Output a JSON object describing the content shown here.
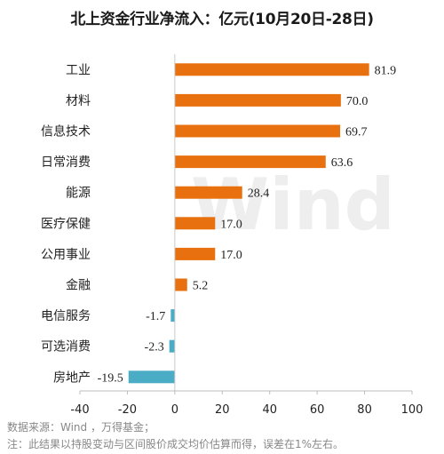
{
  "title": "北上资金行业净流入：亿元(10月20日-28日)",
  "watermark": "Wind",
  "source": "数据来源：Wind ，万得基金；",
  "footnote": "注：此结果以持股变动与区间股价成交均价估算而得，误差在1%左右。",
  "colors": {
    "positive": "#E8700F",
    "negative": "#4BACC6"
  },
  "chart_data": {
    "type": "bar",
    "orientation": "horizontal",
    "title": "北上资金行业净流入：亿元(10月20日-28日)",
    "xlabel": "",
    "ylabel": "",
    "xlim": [
      -40,
      100
    ],
    "xticks": [
      -40,
      -20,
      0,
      20,
      40,
      60,
      80,
      100
    ],
    "grid": false,
    "categories": [
      "工业",
      "材料",
      "信息技术",
      "日常消费",
      "能源",
      "医疗保健",
      "公用事业",
      "金融",
      "电信服务",
      "可选消费",
      "房地产"
    ],
    "values": [
      81.9,
      70.0,
      69.7,
      63.6,
      28.4,
      17.0,
      17.0,
      5.2,
      -1.7,
      -2.3,
      -19.5
    ],
    "value_labels": [
      "81.9",
      "70.0",
      "69.7",
      "63.6",
      "28.4",
      "17.0",
      "17.0",
      "5.2",
      "-1.7",
      "-2.3",
      "-19.5"
    ]
  }
}
